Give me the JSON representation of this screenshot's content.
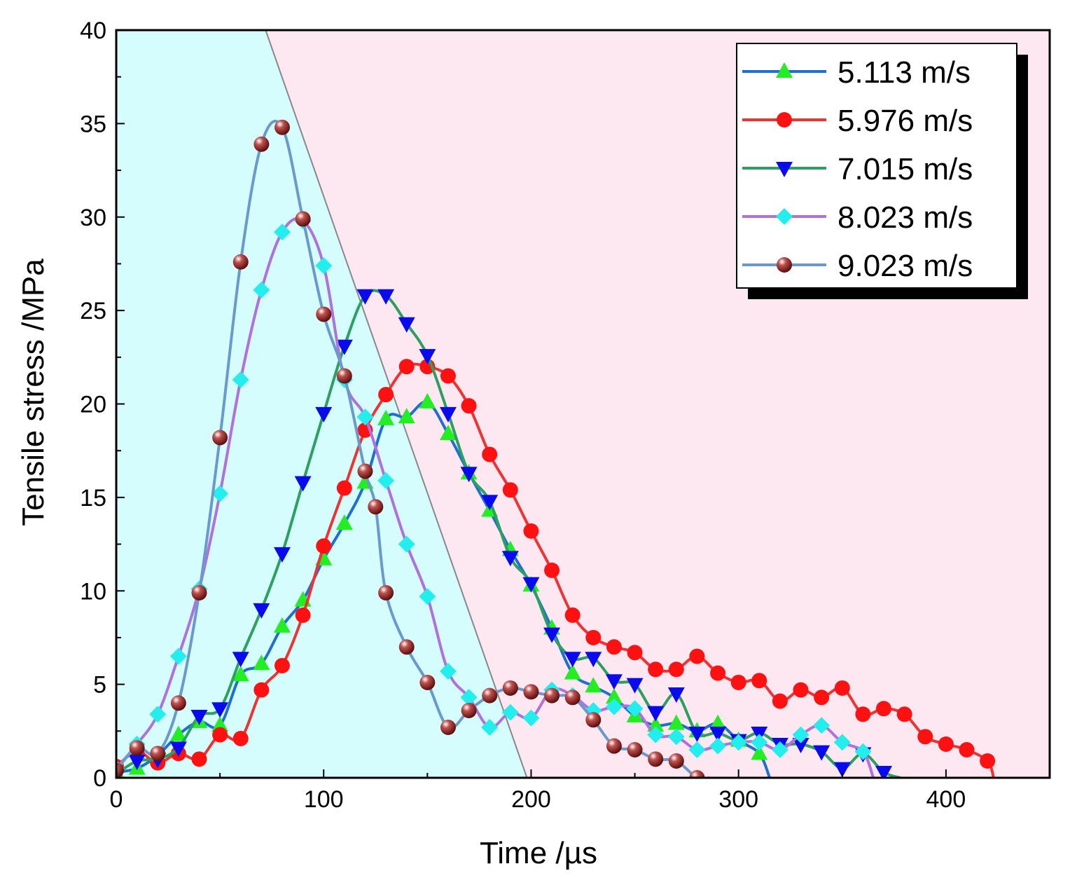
{
  "chart_data": {
    "type": "line",
    "title": "",
    "xlabel": "Time /µs",
    "ylabel": "Tensile stress /MPa",
    "xlim": [
      0,
      450
    ],
    "ylim": [
      0,
      40
    ],
    "xticks": [
      0,
      100,
      200,
      300,
      400
    ],
    "yticks": [
      0,
      5,
      10,
      15,
      20,
      25,
      30,
      35,
      40
    ],
    "xtick_labels": [
      "0",
      "100",
      "200",
      "300",
      "400"
    ],
    "ytick_labels": [
      "0",
      "5",
      "10",
      "15",
      "20",
      "25",
      "30",
      "35",
      "40"
    ],
    "legend_position": "top-right",
    "background_regions": [
      {
        "name": "left-region",
        "color": "#d6fdfd",
        "boundary_line": [
          [
            72,
            40
          ],
          [
            198,
            0
          ]
        ]
      },
      {
        "name": "right-region",
        "color": "#fde8f2"
      }
    ],
    "series": [
      {
        "name": "5.113 m/s",
        "line_color": "#1f6fd2",
        "marker": "triangle-up",
        "marker_color": "#22ee22",
        "x": [
          0,
          10,
          20,
          30,
          40,
          50,
          60,
          70,
          80,
          90,
          100,
          110,
          120,
          130,
          140,
          150,
          160,
          170,
          180,
          190,
          200,
          210,
          220,
          230,
          240,
          250,
          260,
          270,
          280,
          290,
          300,
          310,
          315
        ],
        "y": [
          0.3,
          0.5,
          1.2,
          2.3,
          3.0,
          2.8,
          5.5,
          6.1,
          8.1,
          9.5,
          11.7,
          13.6,
          15.8,
          19.2,
          19.3,
          20.1,
          18.4,
          16.3,
          14.3,
          12.2,
          10.3,
          8.0,
          5.6,
          4.9,
          4.3,
          3.3,
          2.8,
          2.9,
          2.5,
          2.9,
          2.0,
          1.3,
          0.0
        ]
      },
      {
        "name": "5.976 m/s",
        "line_color": "#ee3333",
        "marker": "circle",
        "marker_color": "#ff1111",
        "x": [
          0,
          10,
          20,
          30,
          40,
          50,
          60,
          70,
          80,
          90,
          100,
          110,
          120,
          130,
          140,
          150,
          160,
          170,
          180,
          190,
          200,
          210,
          220,
          230,
          240,
          250,
          260,
          270,
          280,
          290,
          300,
          310,
          320,
          330,
          340,
          350,
          360,
          370,
          380,
          390,
          400,
          410,
          420,
          423
        ],
        "y": [
          0.6,
          1.4,
          0.8,
          1.3,
          1.0,
          2.3,
          2.1,
          4.7,
          6.0,
          8.7,
          12.4,
          15.5,
          18.6,
          20.5,
          22.0,
          22.0,
          21.5,
          19.9,
          17.3,
          15.4,
          13.2,
          11.1,
          8.7,
          7.5,
          7.0,
          6.7,
          5.8,
          5.8,
          6.5,
          5.6,
          5.1,
          5.2,
          4.1,
          4.7,
          4.3,
          4.8,
          3.4,
          3.7,
          3.4,
          2.2,
          1.8,
          1.5,
          0.9,
          0.0
        ]
      },
      {
        "name": "7.015 m/s",
        "line_color": "#2ca060",
        "marker": "triangle-down",
        "marker_color": "#0a0aee",
        "x": [
          0,
          10,
          20,
          30,
          40,
          50,
          60,
          70,
          80,
          90,
          100,
          110,
          120,
          130,
          140,
          150,
          160,
          170,
          180,
          190,
          200,
          210,
          220,
          230,
          240,
          250,
          260,
          270,
          280,
          290,
          300,
          310,
          320,
          330,
          340,
          350,
          360,
          370,
          378
        ],
        "y": [
          0.2,
          0.9,
          1.0,
          1.6,
          3.3,
          3.7,
          6.4,
          9.0,
          12.0,
          15.8,
          19.5,
          23.1,
          25.8,
          25.8,
          24.3,
          22.6,
          19.5,
          16.3,
          14.8,
          11.8,
          10.4,
          7.7,
          6.4,
          6.4,
          5.2,
          5.0,
          3.5,
          4.5,
          2.4,
          2.4,
          2.0,
          2.4,
          1.8,
          1.8,
          1.4,
          0.5,
          1.3,
          0.3,
          0.0
        ]
      },
      {
        "name": "8.023 m/s",
        "line_color": "#b070dd",
        "marker": "diamond",
        "marker_color": "#22eeee",
        "x": [
          0,
          10,
          20,
          30,
          40,
          50,
          60,
          70,
          80,
          90,
          100,
          110,
          120,
          130,
          140,
          150,
          160,
          170,
          180,
          190,
          200,
          210,
          220,
          230,
          240,
          250,
          260,
          270,
          280,
          290,
          300,
          310,
          320,
          330,
          340,
          350,
          360,
          365
        ],
        "y": [
          0.5,
          1.8,
          3.4,
          6.5,
          10.1,
          15.2,
          21.3,
          26.1,
          29.2,
          29.8,
          27.4,
          21.3,
          19.3,
          15.9,
          12.5,
          9.7,
          5.7,
          4.3,
          2.7,
          3.5,
          3.2,
          4.7,
          4.4,
          3.6,
          3.8,
          3.7,
          2.3,
          2.2,
          1.5,
          1.7,
          1.9,
          1.9,
          1.5,
          2.3,
          2.8,
          1.9,
          1.4,
          0.0
        ]
      },
      {
        "name": "9.023 m/s",
        "line_color": "#6a9acd",
        "marker": "sphere",
        "marker_color": "#8b1a1a",
        "x": [
          0,
          10,
          20,
          30,
          40,
          50,
          60,
          70,
          80,
          90,
          100,
          110,
          120,
          125,
          130,
          140,
          150,
          160,
          170,
          180,
          190,
          200,
          210,
          220,
          230,
          240,
          250,
          260,
          270,
          280,
          286
        ],
        "y": [
          0.4,
          1.6,
          1.3,
          4.0,
          9.9,
          18.2,
          27.6,
          33.9,
          34.8,
          29.9,
          24.8,
          21.5,
          16.4,
          14.5,
          9.9,
          7.0,
          5.1,
          2.7,
          3.6,
          4.4,
          4.8,
          4.6,
          4.4,
          4.3,
          3.1,
          1.7,
          1.5,
          1.0,
          0.9,
          0.0,
          0.0
        ]
      }
    ]
  }
}
